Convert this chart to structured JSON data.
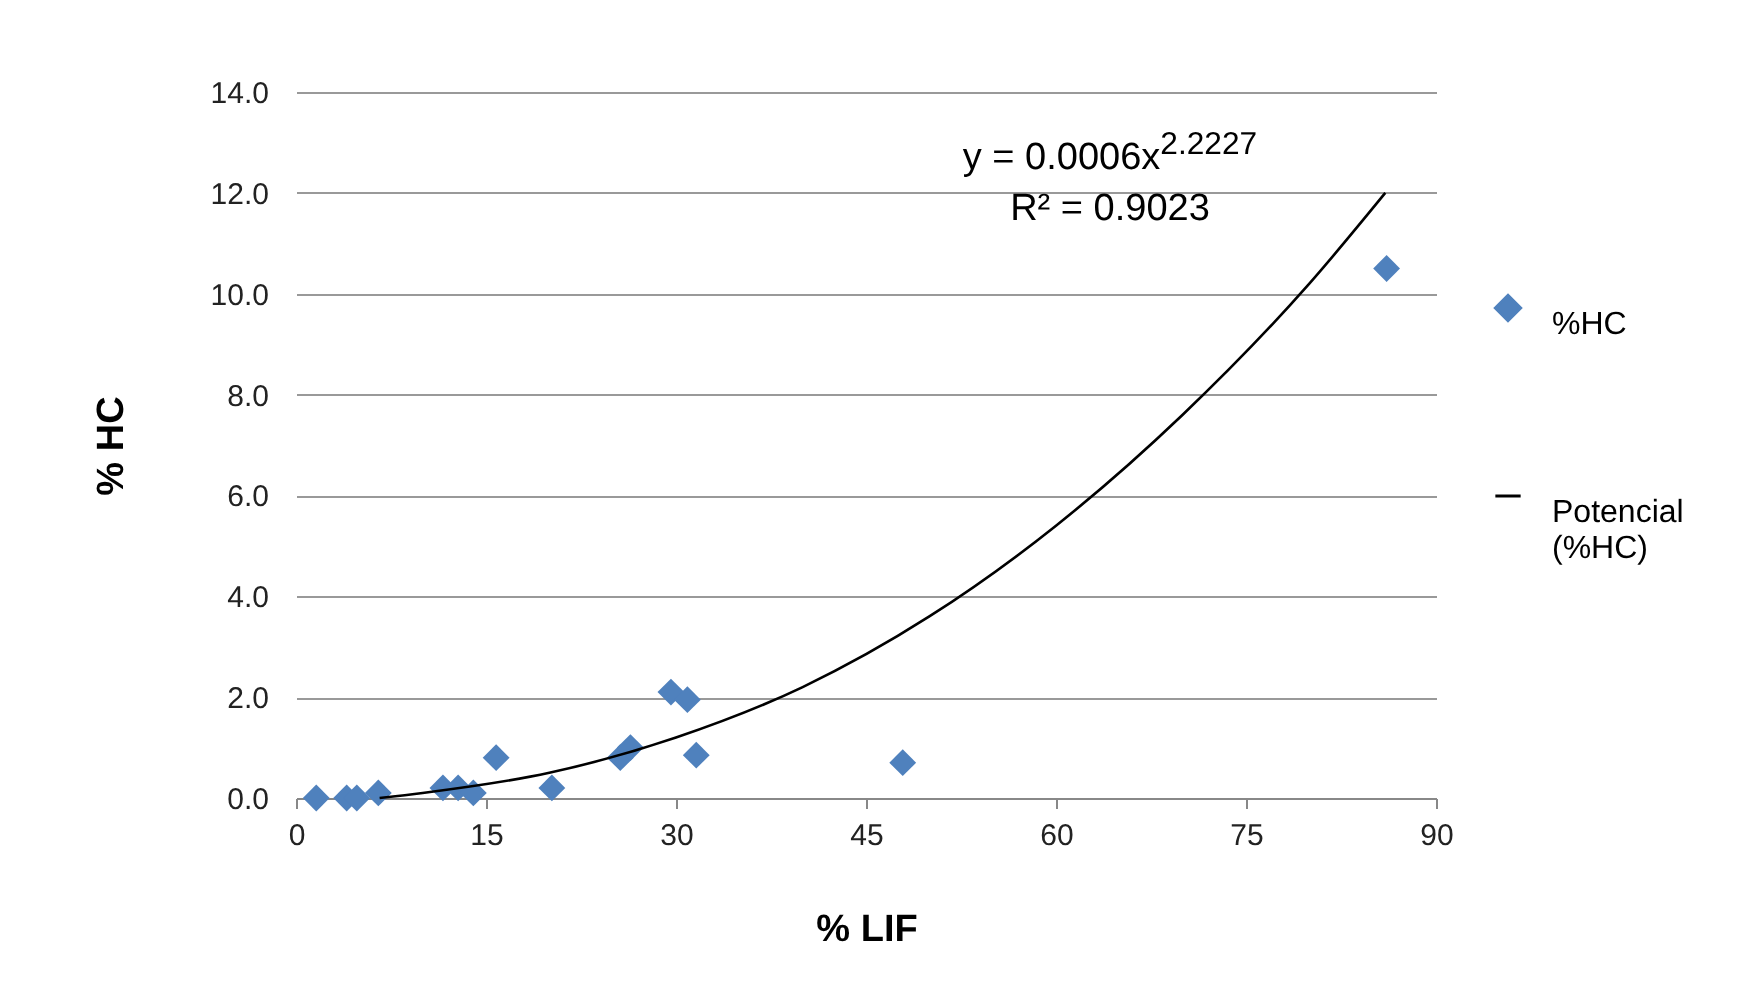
{
  "chart_data": {
    "type": "scatter",
    "xlabel": "% LIF",
    "ylabel": "% HC",
    "xlim": [
      0,
      90
    ],
    "xticks": [
      0,
      15,
      30,
      45,
      60,
      75,
      90
    ],
    "ylim": [
      0,
      14
    ],
    "yticks": [
      {
        "value": 0,
        "label": "0.0"
      },
      {
        "value": 2,
        "label": "2.0"
      },
      {
        "value": 4,
        "label": "4.0"
      },
      {
        "value": 6,
        "label": "6.0"
      },
      {
        "value": 8,
        "label": "8.0"
      },
      {
        "value": 10,
        "label": "10.0"
      },
      {
        "value": 12,
        "label": "12.0"
      },
      {
        "value": 14,
        "label": "14.0"
      }
    ],
    "grid": "y",
    "legend": "right",
    "annotations": [
      "y = 0.0006x$^{2.2227}$",
      "R² = 0.9023"
    ],
    "series": [
      {
        "name": "%HC",
        "marker": "diamond",
        "color": "#4f81bd",
        "x": [
          1.6,
          4.0,
          4.8,
          6.5,
          11.6,
          12.8,
          14.0,
          15.8,
          20.2,
          25.6,
          26.4,
          29.6,
          30.9,
          31.6,
          47.9,
          86.1
        ],
        "values": [
          0.0,
          0.0,
          0.0,
          0.1,
          0.2,
          0.2,
          0.1,
          0.8,
          0.2,
          0.8,
          1.0,
          2.1,
          1.95,
          0.85,
          0.7,
          10.5
        ]
      },
      {
        "name": "Potencial (%HC)",
        "type": "line",
        "marker": "none",
        "color": "#000000",
        "x": [
          6.6,
          10,
          20,
          30,
          40,
          50,
          60,
          70,
          80,
          86
        ],
        "values": [
          0.0,
          0.1,
          0.5,
          1.2,
          2.2,
          3.6,
          5.4,
          7.6,
          10.2,
          12.0
        ]
      }
    ]
  }
}
